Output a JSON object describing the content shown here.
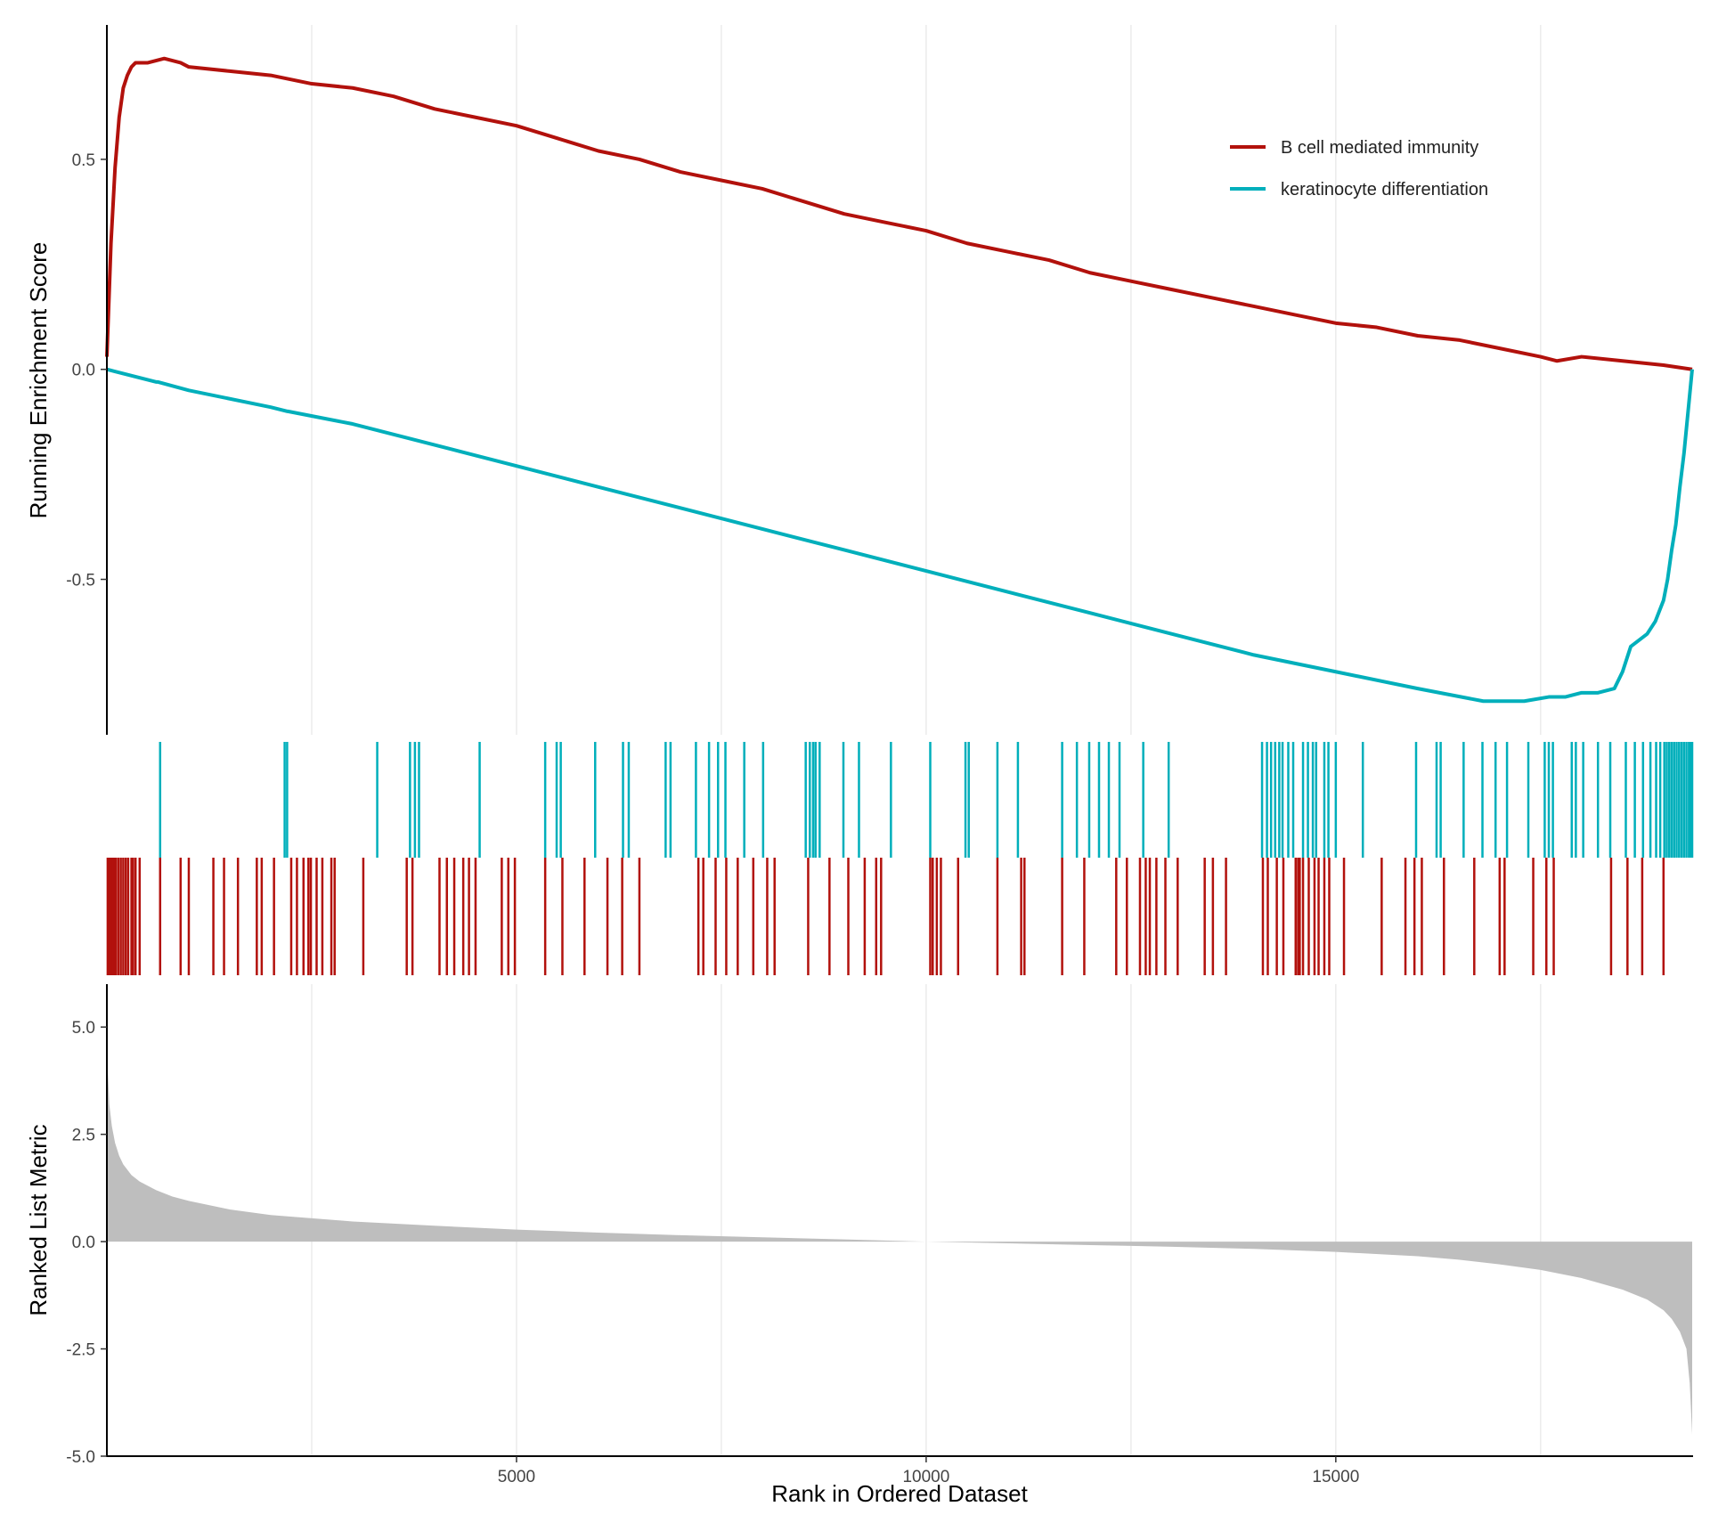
{
  "chart_data": {
    "type": "line",
    "title": "",
    "xlabel": "Rank in Ordered Dataset",
    "xlim": [
      0,
      19350
    ],
    "x_ticks": [
      5000,
      10000,
      15000
    ],
    "x_tick_labels": [
      "5000",
      "10000",
      "15000"
    ],
    "grid": "vertical gridlines",
    "legend_position": "top-right",
    "panels": {
      "enrichment": {
        "ylabel": "Running Enrichment Score",
        "ylim": [
          -0.87,
          0.82
        ],
        "y_ticks": [
          0.5,
          0.0,
          -0.5
        ],
        "y_tick_labels": [
          "0.5",
          "0.0",
          "-0.5"
        ]
      },
      "metric": {
        "ylabel": "Ranked List Metric",
        "ylim": [
          -5.0,
          6.0
        ],
        "y_ticks": [
          5.0,
          2.5,
          0.0,
          -2.5,
          -5.0
        ],
        "y_tick_labels": [
          "5.0",
          "2.5",
          "0.0",
          "-2.5",
          "-5.0"
        ]
      }
    },
    "series": [
      {
        "name": "B cell mediated immunity",
        "color": "#B2110C",
        "x": [
          0,
          50,
          100,
          150,
          200,
          250,
          300,
          350,
          500,
          700,
          900,
          1000,
          1500,
          2000,
          2500,
          3000,
          3500,
          4000,
          4500,
          5000,
          5500,
          6000,
          6500,
          7000,
          7500,
          8000,
          8500,
          9000,
          9500,
          10000,
          10500,
          11000,
          11500,
          12000,
          12500,
          13000,
          13500,
          14000,
          14500,
          15000,
          15500,
          16000,
          16500,
          17000,
          17500,
          17700,
          18000,
          18500,
          19000,
          19350
        ],
        "values": [
          0.03,
          0.3,
          0.48,
          0.6,
          0.67,
          0.7,
          0.72,
          0.73,
          0.73,
          0.74,
          0.73,
          0.72,
          0.71,
          0.7,
          0.68,
          0.67,
          0.65,
          0.62,
          0.6,
          0.58,
          0.55,
          0.52,
          0.5,
          0.47,
          0.45,
          0.43,
          0.4,
          0.37,
          0.35,
          0.33,
          0.3,
          0.28,
          0.26,
          0.23,
          0.21,
          0.19,
          0.17,
          0.15,
          0.13,
          0.11,
          0.1,
          0.08,
          0.07,
          0.05,
          0.03,
          0.02,
          0.03,
          0.02,
          0.01,
          0.0
        ]
      },
      {
        "name": "keratinocyte differentiation",
        "color": "#00AFBB",
        "x": [
          0,
          600,
          620,
          1000,
          2000,
          2200,
          2210,
          3000,
          4000,
          5000,
          6000,
          7000,
          8000,
          9000,
          10000,
          11000,
          12000,
          13000,
          14000,
          15000,
          16000,
          16800,
          17300,
          17600,
          17800,
          18000,
          18200,
          18400,
          18500,
          18600,
          18800,
          18900,
          19000,
          19050,
          19100,
          19150,
          19200,
          19250,
          19300,
          19350
        ],
        "values": [
          0.0,
          -0.03,
          -0.03,
          -0.05,
          -0.09,
          -0.1,
          -0.1,
          -0.13,
          -0.18,
          -0.23,
          -0.28,
          -0.33,
          -0.38,
          -0.43,
          -0.48,
          -0.53,
          -0.58,
          -0.63,
          -0.68,
          -0.72,
          -0.76,
          -0.79,
          -0.79,
          -0.78,
          -0.78,
          -0.77,
          -0.77,
          -0.76,
          -0.72,
          -0.66,
          -0.63,
          -0.6,
          -0.55,
          -0.5,
          -0.43,
          -0.37,
          -0.28,
          -0.2,
          -0.1,
          0.0
        ]
      }
    ],
    "hit_positions": {
      "keratinocyte differentiation": [
        650,
        2170,
        2200,
        3300,
        3700,
        3760,
        3810,
        4550,
        5350,
        5490,
        5540,
        5960,
        6300,
        6370,
        6820,
        6880,
        7190,
        7350,
        7460,
        7550,
        7780,
        8010,
        8530,
        8580,
        8620,
        8650,
        8700,
        8990,
        9180,
        9570,
        10050,
        10480,
        10520,
        10870,
        11120,
        11660,
        11840,
        11990,
        12110,
        12230,
        12360,
        12650,
        12960,
        14100,
        14160,
        14210,
        14260,
        14310,
        14350,
        14420,
        14480,
        14600,
        14660,
        14720,
        14760,
        14860,
        14910,
        15000,
        15330,
        15980,
        16230,
        16280,
        16560,
        16790,
        16950,
        17090,
        17350,
        17550,
        17600,
        17650,
        17880,
        17930,
        18020,
        18200,
        18350,
        18540,
        18650,
        18750,
        18840,
        18910,
        18960,
        19010,
        19040,
        19070,
        19100,
        19130,
        19160,
        19190,
        19220,
        19250,
        19280,
        19310,
        19330,
        19350
      ],
      "B cell mediated immunity": [
        10,
        30,
        50,
        70,
        90,
        110,
        140,
        170,
        200,
        230,
        260,
        300,
        320,
        350,
        400,
        650,
        900,
        1000,
        1300,
        1430,
        1600,
        1830,
        1890,
        2040,
        2250,
        2320,
        2400,
        2460,
        2490,
        2560,
        2630,
        2740,
        2780,
        3130,
        3660,
        3730,
        4060,
        4150,
        4240,
        4350,
        4420,
        4500,
        4820,
        4900,
        4980,
        5350,
        5560,
        5830,
        6110,
        6290,
        6500,
        7220,
        7280,
        7430,
        7560,
        7700,
        7890,
        8060,
        8150,
        8560,
        8820,
        9050,
        9250,
        9390,
        9450,
        10050,
        10080,
        10130,
        10180,
        10390,
        10870,
        11160,
        11200,
        11660,
        11930,
        12320,
        12450,
        12610,
        12680,
        12730,
        12810,
        12920,
        13070,
        13400,
        13500,
        13660,
        14110,
        14170,
        14280,
        14360,
        14510,
        14540,
        14560,
        14600,
        14670,
        14740,
        14790,
        14860,
        14920,
        15100,
        15560,
        15850,
        15960,
        16050,
        16320,
        16690,
        17000,
        17060,
        17410,
        17570,
        17660,
        18360,
        18560,
        18740,
        19000
      ]
    },
    "metric_curve": {
      "x": [
        0,
        30,
        60,
        100,
        150,
        200,
        300,
        400,
        600,
        800,
        1000,
        1500,
        2000,
        3000,
        4000,
        5000,
        6000,
        7000,
        8000,
        9000,
        10000,
        11000,
        12000,
        13000,
        14000,
        15000,
        16000,
        16500,
        17000,
        17500,
        18000,
        18500,
        18800,
        19000,
        19100,
        19200,
        19280,
        19320,
        19350
      ],
      "values": [
        4.5,
        3.2,
        2.7,
        2.3,
        2.0,
        1.8,
        1.55,
        1.4,
        1.2,
        1.05,
        0.95,
        0.75,
        0.62,
        0.47,
        0.37,
        0.28,
        0.21,
        0.15,
        0.1,
        0.05,
        0.0,
        -0.04,
        -0.08,
        -0.12,
        -0.17,
        -0.24,
        -0.34,
        -0.42,
        -0.53,
        -0.66,
        -0.85,
        -1.12,
        -1.35,
        -1.6,
        -1.8,
        -2.1,
        -2.5,
        -3.3,
        -4.5
      ]
    },
    "metric_fill_color": "#BEBEBE"
  }
}
